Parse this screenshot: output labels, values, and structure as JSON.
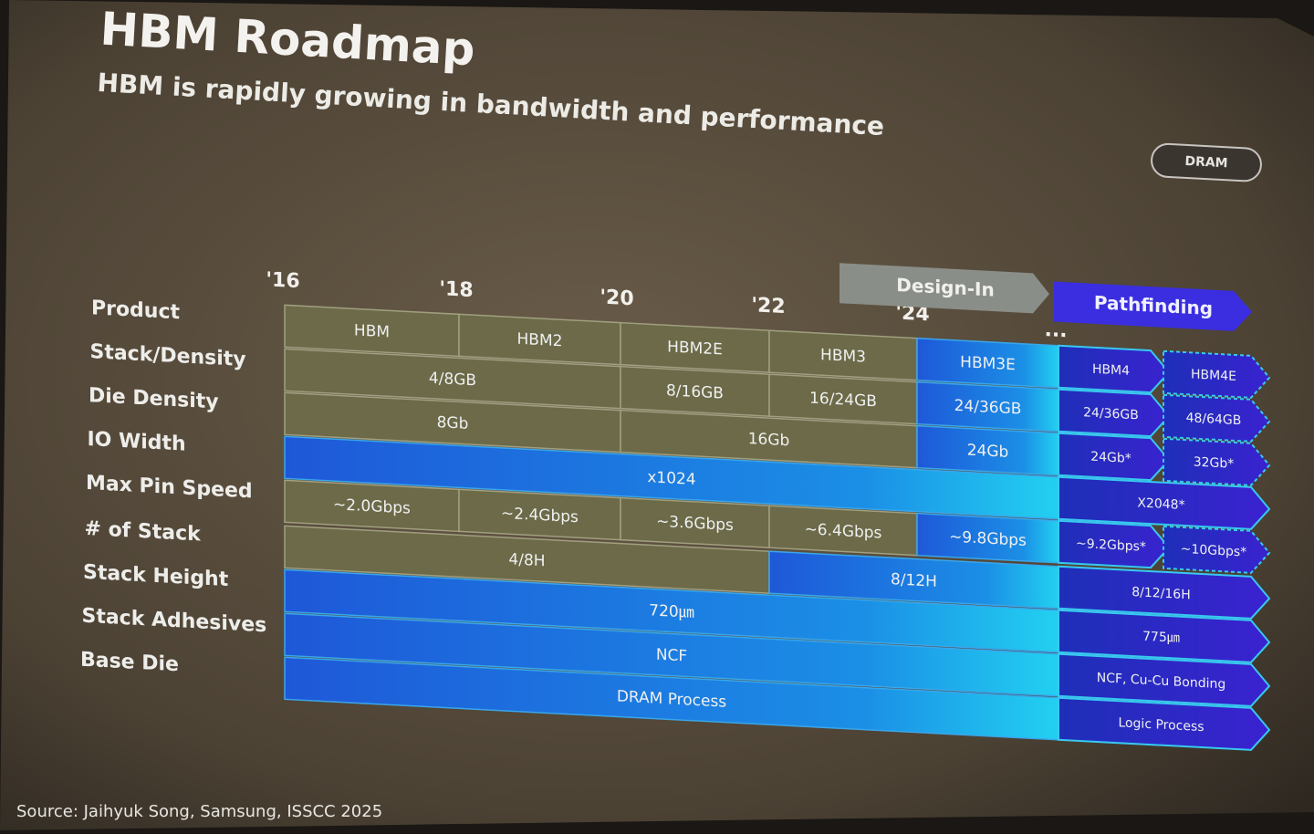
{
  "header": {
    "title": "HBM Roadmap",
    "subtitle": "HBM is rapidly growing in bandwidth and performance",
    "badge": "DRAM"
  },
  "timeline": {
    "years": [
      "'16",
      "'18",
      "'20",
      "'22",
      "'24",
      "..."
    ],
    "phases": [
      "Design-In",
      "Pathfinding"
    ]
  },
  "table": {
    "rows": [
      {
        "label": "Product",
        "cells": [
          "HBM",
          "HBM2",
          "HBM2E",
          "HBM3",
          "HBM3E",
          "HBM4",
          "HBM4E"
        ]
      },
      {
        "label": "Stack/Density",
        "cells": [
          "4/8GB",
          "8/16GB",
          "16/24GB",
          "24/36GB",
          "24/36GB",
          "48/64GB"
        ]
      },
      {
        "label": "Die Density",
        "cells": [
          "8Gb",
          "16Gb",
          "24Gb",
          "24Gb*",
          "32Gb*"
        ]
      },
      {
        "label": "IO Width",
        "cells": [
          "x1024",
          "X2048*"
        ]
      },
      {
        "label": "Max Pin Speed",
        "cells": [
          "~2.0Gbps",
          "~2.4Gbps",
          "~3.6Gbps",
          "~6.4Gbps",
          "~9.8Gbps",
          "~9.2Gbps*",
          "~10Gbps*"
        ]
      },
      {
        "label": "# of Stack",
        "cells": [
          "4/8H",
          "8/12H",
          "8/12/16H"
        ]
      },
      {
        "label": "Stack Height",
        "cells": [
          "720㎛",
          "775㎛"
        ]
      },
      {
        "label": "Stack Adhesives",
        "cells": [
          "NCF",
          "NCF, Cu-Cu Bonding"
        ]
      },
      {
        "label": "Base Die",
        "cells": [
          "DRAM Process",
          "Logic Process"
        ]
      }
    ]
  },
  "footer": {
    "source": "Source: Jaihyuk Song, Samsung, ISSCC 2025"
  }
}
